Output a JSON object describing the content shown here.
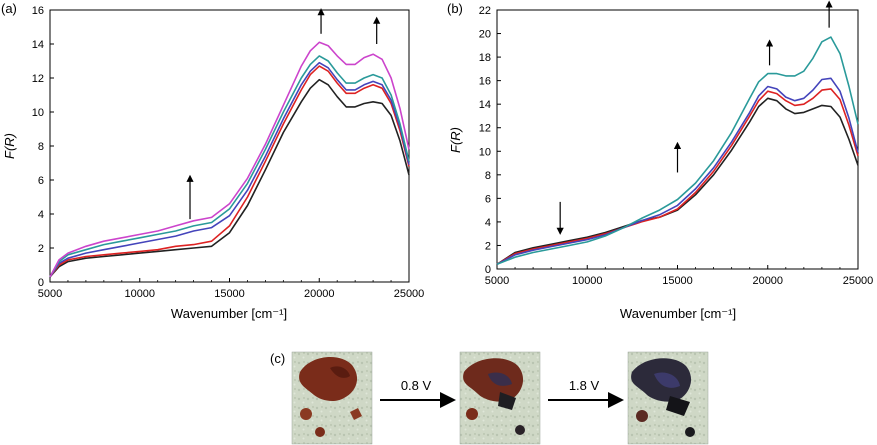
{
  "panels": {
    "a": {
      "label": "(a)"
    },
    "b": {
      "label": "(b)"
    },
    "c": {
      "label": "(c)"
    }
  },
  "chart_data": [
    {
      "id": "a",
      "type": "line",
      "xlabel": "Wavenumber [cm⁻¹]",
      "ylabel": "F(R)",
      "xlim": [
        5000,
        25000
      ],
      "ylim": [
        0,
        16
      ],
      "xticks": [
        5000,
        10000,
        15000,
        20000,
        25000
      ],
      "yticks": [
        0,
        2,
        4,
        6,
        8,
        10,
        12,
        14,
        16
      ],
      "series": [
        {
          "color": "#222222",
          "x": [
            5000,
            5500,
            6000,
            7000,
            8000,
            9000,
            10000,
            11000,
            12000,
            13000,
            14000,
            15000,
            16000,
            17000,
            18000,
            19000,
            19500,
            20000,
            20500,
            21000,
            21500,
            22000,
            22500,
            23000,
            23500,
            24000,
            24500,
            25000
          ],
          "y": [
            0.3,
            0.9,
            1.2,
            1.4,
            1.5,
            1.6,
            1.7,
            1.8,
            1.9,
            2.0,
            2.1,
            2.9,
            4.5,
            6.6,
            8.8,
            10.6,
            11.4,
            11.9,
            11.6,
            10.9,
            10.3,
            10.3,
            10.5,
            10.6,
            10.5,
            9.8,
            8.3,
            6.3
          ]
        },
        {
          "color": "#dd2222",
          "x": [
            5000,
            5500,
            6000,
            7000,
            8000,
            9000,
            10000,
            11000,
            12000,
            13000,
            14000,
            15000,
            16000,
            17000,
            18000,
            19000,
            19500,
            20000,
            20500,
            21000,
            21500,
            22000,
            22500,
            23000,
            23500,
            24000,
            24500,
            25000
          ],
          "y": [
            0.3,
            1.0,
            1.3,
            1.5,
            1.6,
            1.7,
            1.8,
            1.9,
            2.1,
            2.2,
            2.4,
            3.3,
            5.0,
            7.1,
            9.3,
            11.3,
            12.2,
            12.7,
            12.4,
            11.7,
            11.1,
            11.1,
            11.4,
            11.6,
            11.4,
            10.5,
            8.9,
            6.8
          ]
        },
        {
          "color": "#4444bb",
          "x": [
            5000,
            5500,
            6000,
            7000,
            8000,
            9000,
            10000,
            11000,
            12000,
            13000,
            14000,
            15000,
            16000,
            17000,
            18000,
            19000,
            19500,
            20000,
            20500,
            21000,
            21500,
            22000,
            22500,
            23000,
            23500,
            24000,
            24500,
            25000
          ],
          "y": [
            0.3,
            1.1,
            1.4,
            1.7,
            1.9,
            2.1,
            2.3,
            2.5,
            2.7,
            3.0,
            3.2,
            3.9,
            5.4,
            7.4,
            9.6,
            11.6,
            12.4,
            12.9,
            12.6,
            11.9,
            11.3,
            11.3,
            11.6,
            11.8,
            11.6,
            10.7,
            9.1,
            6.9
          ]
        },
        {
          "color": "#2a9a9a",
          "x": [
            5000,
            5500,
            6000,
            7000,
            8000,
            9000,
            10000,
            11000,
            12000,
            13000,
            14000,
            15000,
            16000,
            17000,
            18000,
            19000,
            19500,
            20000,
            20500,
            21000,
            21500,
            22000,
            22500,
            23000,
            23500,
            24000,
            24500,
            25000
          ],
          "y": [
            0.3,
            1.2,
            1.6,
            1.9,
            2.2,
            2.4,
            2.6,
            2.8,
            3.0,
            3.3,
            3.5,
            4.3,
            5.8,
            7.8,
            10.0,
            12.0,
            12.8,
            13.3,
            13.0,
            12.3,
            11.7,
            11.7,
            12.0,
            12.2,
            12.0,
            11.0,
            9.3,
            7.1
          ]
        },
        {
          "color": "#cc44cc",
          "x": [
            5000,
            5500,
            6000,
            7000,
            8000,
            9000,
            10000,
            11000,
            12000,
            13000,
            14000,
            15000,
            16000,
            17000,
            18000,
            19000,
            19500,
            20000,
            20500,
            21000,
            21500,
            22000,
            22500,
            23000,
            23500,
            24000,
            24500,
            25000
          ],
          "y": [
            0.3,
            1.3,
            1.7,
            2.1,
            2.4,
            2.6,
            2.8,
            3.0,
            3.3,
            3.6,
            3.8,
            4.6,
            6.1,
            8.1,
            10.4,
            12.7,
            13.6,
            14.1,
            13.9,
            13.3,
            12.8,
            12.8,
            13.2,
            13.4,
            13.1,
            12.0,
            10.2,
            7.8
          ]
        }
      ],
      "arrows": [
        {
          "x": 12800,
          "y_from": 3.7,
          "y_to": 6.1,
          "dir": "up"
        },
        {
          "x": 20100,
          "y_from": 14.6,
          "y_to": 15.9,
          "dir": "up"
        },
        {
          "x": 23200,
          "y_from": 14.0,
          "y_to": 15.4,
          "dir": "up"
        }
      ]
    },
    {
      "id": "b",
      "type": "line",
      "xlabel": "Wavenumber [cm⁻¹]",
      "ylabel": "F(R)",
      "xlim": [
        5000,
        25000
      ],
      "ylim": [
        0,
        22
      ],
      "xticks": [
        5000,
        10000,
        15000,
        20000,
        25000
      ],
      "yticks": [
        0,
        2,
        4,
        6,
        8,
        10,
        12,
        14,
        16,
        18,
        20,
        22
      ],
      "series": [
        {
          "color": "#222222",
          "x": [
            5000,
            6000,
            7000,
            8000,
            9000,
            10000,
            11000,
            12000,
            13000,
            14000,
            15000,
            16000,
            17000,
            18000,
            19000,
            19500,
            20000,
            20500,
            21000,
            21500,
            22000,
            22500,
            23000,
            23500,
            24000,
            24500,
            25000
          ],
          "y": [
            0.4,
            1.4,
            1.8,
            2.1,
            2.4,
            2.7,
            3.1,
            3.6,
            4.1,
            4.4,
            5.0,
            6.3,
            8.0,
            10.1,
            12.5,
            13.8,
            14.5,
            14.3,
            13.6,
            13.2,
            13.3,
            13.6,
            13.9,
            13.8,
            12.9,
            11.0,
            8.8
          ]
        },
        {
          "color": "#dd2222",
          "x": [
            5000,
            6000,
            7000,
            8000,
            9000,
            10000,
            11000,
            12000,
            13000,
            14000,
            15000,
            16000,
            17000,
            18000,
            19000,
            19500,
            20000,
            20500,
            21000,
            21500,
            22000,
            22500,
            23000,
            23500,
            24000,
            24500,
            25000
          ],
          "y": [
            0.4,
            1.3,
            1.7,
            2.0,
            2.3,
            2.6,
            3.0,
            3.5,
            4.0,
            4.4,
            5.1,
            6.5,
            8.3,
            10.5,
            13.0,
            14.3,
            15.1,
            14.9,
            14.3,
            13.9,
            14.0,
            14.5,
            15.2,
            15.3,
            14.4,
            12.2,
            9.6
          ]
        },
        {
          "color": "#4444bb",
          "x": [
            5000,
            6000,
            7000,
            8000,
            9000,
            10000,
            11000,
            12000,
            13000,
            14000,
            15000,
            16000,
            17000,
            18000,
            19000,
            19500,
            20000,
            20500,
            21000,
            21500,
            22000,
            22500,
            23000,
            23500,
            24000,
            24500,
            25000
          ],
          "y": [
            0.4,
            1.2,
            1.6,
            1.9,
            2.2,
            2.5,
            2.9,
            3.5,
            4.1,
            4.6,
            5.4,
            6.8,
            8.6,
            10.8,
            13.3,
            14.7,
            15.5,
            15.3,
            14.6,
            14.3,
            14.5,
            15.2,
            16.1,
            16.2,
            15.1,
            12.8,
            9.9
          ]
        },
        {
          "color": "#2a9a9a",
          "x": [
            5000,
            6000,
            7000,
            8000,
            9000,
            10000,
            11000,
            12000,
            13000,
            14000,
            15000,
            16000,
            17000,
            18000,
            19000,
            19500,
            20000,
            20500,
            21000,
            21500,
            22000,
            22500,
            23000,
            23500,
            24000,
            24500,
            25000
          ],
          "y": [
            0.4,
            1.0,
            1.4,
            1.7,
            2.0,
            2.3,
            2.8,
            3.5,
            4.3,
            5.0,
            5.9,
            7.3,
            9.2,
            11.6,
            14.5,
            15.9,
            16.6,
            16.6,
            16.4,
            16.4,
            16.8,
            17.9,
            19.3,
            19.7,
            18.3,
            15.5,
            12.3
          ]
        }
      ],
      "arrows": [
        {
          "x": 8500,
          "y_from": 5.7,
          "y_to": 3.2,
          "dir": "down"
        },
        {
          "x": 15000,
          "y_from": 8.2,
          "y_to": 10.5,
          "dir": "up"
        },
        {
          "x": 20100,
          "y_from": 17.3,
          "y_to": 19.2,
          "dir": "up"
        },
        {
          "x": 23400,
          "y_from": 20.5,
          "y_to": 22.5,
          "dir": "up"
        }
      ]
    }
  ],
  "photo_sequence": {
    "steps": [
      {
        "label": "0.8 V"
      },
      {
        "label": "1.8 V"
      }
    ]
  }
}
